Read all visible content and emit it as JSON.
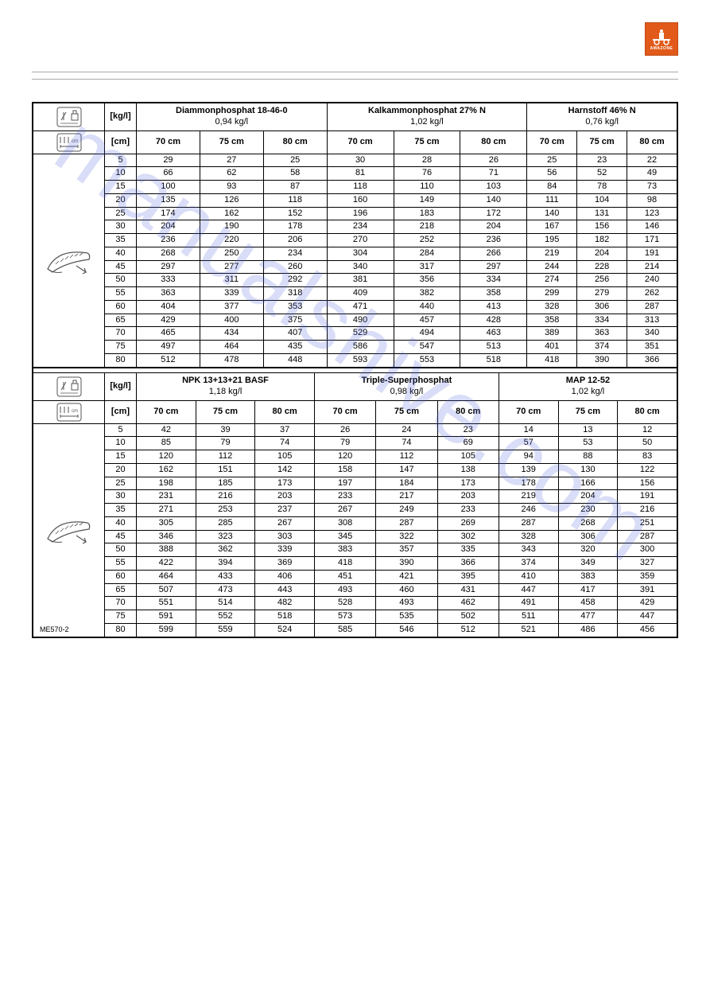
{
  "logo_text": "AMAZONE",
  "logo_bg": "#e15a1a",
  "footer_code": "ME570-2",
  "watermark_text": "manualshive.com",
  "watermark_color": "rgba(80,100,220,0.22)",
  "unit_kg": "[kg/l]",
  "unit_cm": "[cm]",
  "col_labels": [
    "70 cm",
    "75 cm",
    "80 cm"
  ],
  "row_labels": [
    5,
    10,
    15,
    20,
    25,
    30,
    35,
    40,
    45,
    50,
    55,
    60,
    65,
    70,
    75,
    80
  ],
  "table1": {
    "products": [
      {
        "name": "Diammonphosphat 18-46-0",
        "density": "0,94 kg/l"
      },
      {
        "name": "Kalkammonphosphat 27% N",
        "density": "1,02 kg/l"
      },
      {
        "name": "Harnstoff 46% N",
        "density": "0,76 kg/l"
      }
    ],
    "rows": [
      [
        29,
        27,
        25,
        30,
        28,
        26,
        25,
        23,
        22
      ],
      [
        66,
        62,
        58,
        81,
        76,
        71,
        56,
        52,
        49
      ],
      [
        100,
        93,
        87,
        118,
        110,
        103,
        84,
        78,
        73
      ],
      [
        135,
        126,
        118,
        160,
        149,
        140,
        111,
        104,
        98
      ],
      [
        174,
        162,
        152,
        196,
        183,
        172,
        140,
        131,
        123
      ],
      [
        204,
        190,
        178,
        234,
        218,
        204,
        167,
        156,
        146
      ],
      [
        236,
        220,
        206,
        270,
        252,
        236,
        195,
        182,
        171
      ],
      [
        268,
        250,
        234,
        304,
        284,
        266,
        219,
        204,
        191
      ],
      [
        297,
        277,
        260,
        340,
        317,
        297,
        244,
        228,
        214
      ],
      [
        333,
        311,
        292,
        381,
        356,
        334,
        274,
        256,
        240
      ],
      [
        363,
        339,
        318,
        409,
        382,
        358,
        299,
        279,
        262
      ],
      [
        404,
        377,
        353,
        471,
        440,
        413,
        328,
        306,
        287
      ],
      [
        429,
        400,
        375,
        490,
        457,
        428,
        358,
        334,
        313
      ],
      [
        465,
        434,
        407,
        529,
        494,
        463,
        389,
        363,
        340
      ],
      [
        497,
        464,
        435,
        586,
        547,
        513,
        401,
        374,
        351
      ],
      [
        512,
        478,
        448,
        593,
        553,
        518,
        418,
        390,
        366
      ]
    ]
  },
  "table2": {
    "products": [
      {
        "name": "NPK 13+13+21 BASF",
        "density": "1,18 kg/l"
      },
      {
        "name": "Triple-Superphosphat",
        "density": "0,98 kg/l"
      },
      {
        "name": "MAP 12-52",
        "density": "1,02 kg/l"
      }
    ],
    "rows": [
      [
        42,
        39,
        37,
        26,
        24,
        23,
        14,
        13,
        12
      ],
      [
        85,
        79,
        74,
        79,
        74,
        69,
        57,
        53,
        50
      ],
      [
        120,
        112,
        105,
        120,
        112,
        105,
        94,
        88,
        83
      ],
      [
        162,
        151,
        142,
        158,
        147,
        138,
        139,
        130,
        122
      ],
      [
        198,
        185,
        173,
        197,
        184,
        173,
        178,
        166,
        156
      ],
      [
        231,
        216,
        203,
        233,
        217,
        203,
        219,
        204,
        191
      ],
      [
        271,
        253,
        237,
        267,
        249,
        233,
        246,
        230,
        216
      ],
      [
        305,
        285,
        267,
        308,
        287,
        269,
        287,
        268,
        251
      ],
      [
        346,
        323,
        303,
        345,
        322,
        302,
        328,
        306,
        287
      ],
      [
        388,
        362,
        339,
        383,
        357,
        335,
        343,
        320,
        300
      ],
      [
        422,
        394,
        369,
        418,
        390,
        366,
        374,
        349,
        327
      ],
      [
        464,
        433,
        406,
        451,
        421,
        395,
        410,
        383,
        359
      ],
      [
        507,
        473,
        443,
        493,
        460,
        431,
        447,
        417,
        391
      ],
      [
        551,
        514,
        482,
        528,
        493,
        462,
        491,
        458,
        429
      ],
      [
        591,
        552,
        518,
        573,
        535,
        502,
        511,
        477,
        447
      ],
      [
        599,
        559,
        524,
        585,
        546,
        512,
        521,
        486,
        456
      ]
    ]
  }
}
